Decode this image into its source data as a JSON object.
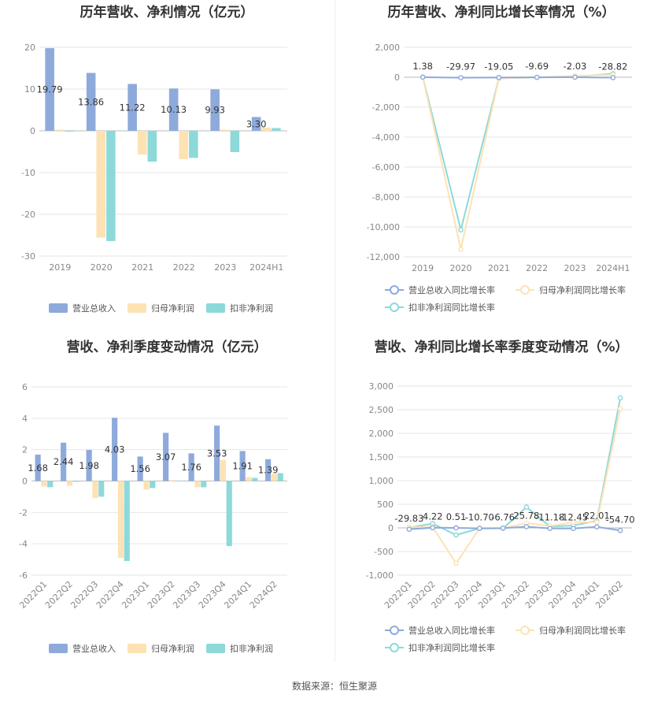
{
  "source_label": "数据来源：恒生聚源",
  "colors": {
    "revenue": "#8eaadb",
    "net_profit": "#fde2b4",
    "deducted_net_profit": "#8dd9da",
    "axis_text": "#888888",
    "grid": "#e6e6e6"
  },
  "chart_data": [
    {
      "id": "annual_amount",
      "type": "bar",
      "title": "历年营收、净利情况（亿元）",
      "categories": [
        "2019",
        "2020",
        "2021",
        "2022",
        "2023",
        "2024H1"
      ],
      "series": [
        {
          "name": "营业总收入",
          "values": [
            19.79,
            13.86,
            11.22,
            10.13,
            9.93,
            3.3
          ],
          "labels": [
            "19.79",
            "13.86",
            "11.22",
            "10.13",
            "9.93",
            "3.30"
          ]
        },
        {
          "name": "归母净利润",
          "values": [
            0.3,
            -25.6,
            -5.7,
            -6.8,
            0.3,
            0.75
          ]
        },
        {
          "name": "扣非净利润",
          "values": [
            -0.2,
            -26.4,
            -7.4,
            -6.5,
            -5.1,
            0.65
          ]
        }
      ],
      "yticks": [
        20,
        10,
        0,
        -10,
        -20,
        -30
      ],
      "ylim": [
        -30,
        20
      ],
      "legend": "bottom"
    },
    {
      "id": "annual_growth",
      "type": "line",
      "title": "历年营收、净利同比增长率情况（%）",
      "categories": [
        "2019",
        "2020",
        "2021",
        "2022",
        "2023",
        "2024H1"
      ],
      "series": [
        {
          "name": "营业总收入同比增长率",
          "values": [
            1.38,
            -29.97,
            -19.05,
            -9.69,
            -2.03,
            -28.82
          ],
          "labels": [
            "1.38",
            "-29.97",
            "-19.05",
            "-9.69",
            "-2.03",
            "-28.82"
          ]
        },
        {
          "name": "归母净利润同比增长率",
          "values": [
            10,
            -11500,
            -80,
            -15,
            90,
            160
          ]
        },
        {
          "name": "扣非净利润同比增长率",
          "values": [
            10,
            -10200,
            -70,
            -10,
            30,
            240
          ]
        }
      ],
      "yticks": [
        "2,000",
        "0",
        "-2,000",
        "-4,000",
        "-6,000",
        "-8,000",
        "-10,000",
        "-12,000"
      ],
      "ylim": [
        -12000,
        2000
      ],
      "legend": "bottom"
    },
    {
      "id": "quarterly_amount",
      "type": "bar",
      "title": "营收、净利季度变动情况（亿元）",
      "categories": [
        "2022Q1",
        "2022Q2",
        "2022Q3",
        "2022Q4",
        "2023Q1",
        "2023Q2",
        "2023Q3",
        "2023Q4",
        "2024Q1",
        "2024Q2"
      ],
      "series": [
        {
          "name": "营业总收入",
          "values": [
            1.68,
            2.44,
            1.98,
            4.03,
            1.56,
            3.07,
            1.76,
            3.53,
            1.91,
            1.39
          ],
          "labels": [
            "1.68",
            "2.44",
            "1.98",
            "4.03",
            "1.56",
            "3.07",
            "1.76",
            "3.53",
            "1.91",
            "1.39"
          ]
        },
        {
          "name": "归母净利润",
          "values": [
            -0.35,
            -0.3,
            -1.1,
            -4.9,
            -0.55,
            0.05,
            -0.4,
            1.35,
            0.25,
            0.45
          ]
        },
        {
          "name": "扣非净利润",
          "values": [
            -0.4,
            -0.05,
            -1.0,
            -5.1,
            -0.45,
            0.02,
            -0.4,
            -4.15,
            0.2,
            0.5
          ]
        }
      ],
      "yticks": [
        6,
        4,
        2,
        0,
        -2,
        -4,
        -6
      ],
      "ylim": [
        -6,
        6
      ],
      "legend": "bottom"
    },
    {
      "id": "quarterly_growth",
      "type": "line",
      "title": "营收、净利同比增长率季度变动情况（%）",
      "categories": [
        "2022Q1",
        "2022Q2",
        "2022Q3",
        "2022Q4",
        "2023Q1",
        "2023Q2",
        "2023Q3",
        "2023Q4",
        "2024Q1",
        "2024Q2"
      ],
      "series": [
        {
          "name": "营业总收入同比增长率",
          "values": [
            -29.83,
            4.22,
            0.51,
            -10.7,
            -6.76,
            25.78,
            -11.18,
            -12.45,
            22.01,
            -54.7
          ],
          "labels": [
            "-29.83",
            "4.22",
            "0.51",
            "-10.70",
            "-6.76",
            "25.78",
            "-11.18",
            "-12.45",
            "22.01",
            "-54.70"
          ]
        },
        {
          "name": "归母净利润同比增长率",
          "values": [
            10,
            20,
            -750,
            -10,
            -5,
            100,
            40,
            120,
            120,
            2520
          ]
        },
        {
          "name": "扣非净利润同比增长率",
          "values": [
            5,
            90,
            -150,
            -10,
            -10,
            440,
            30,
            50,
            150,
            2750
          ]
        }
      ],
      "yticks": [
        "3,000",
        "2,500",
        "2,000",
        "1,500",
        "1,000",
        "500",
        "0",
        "-500",
        "-1,000"
      ],
      "ylim": [
        -1000,
        3000
      ],
      "legend": "bottom"
    }
  ]
}
